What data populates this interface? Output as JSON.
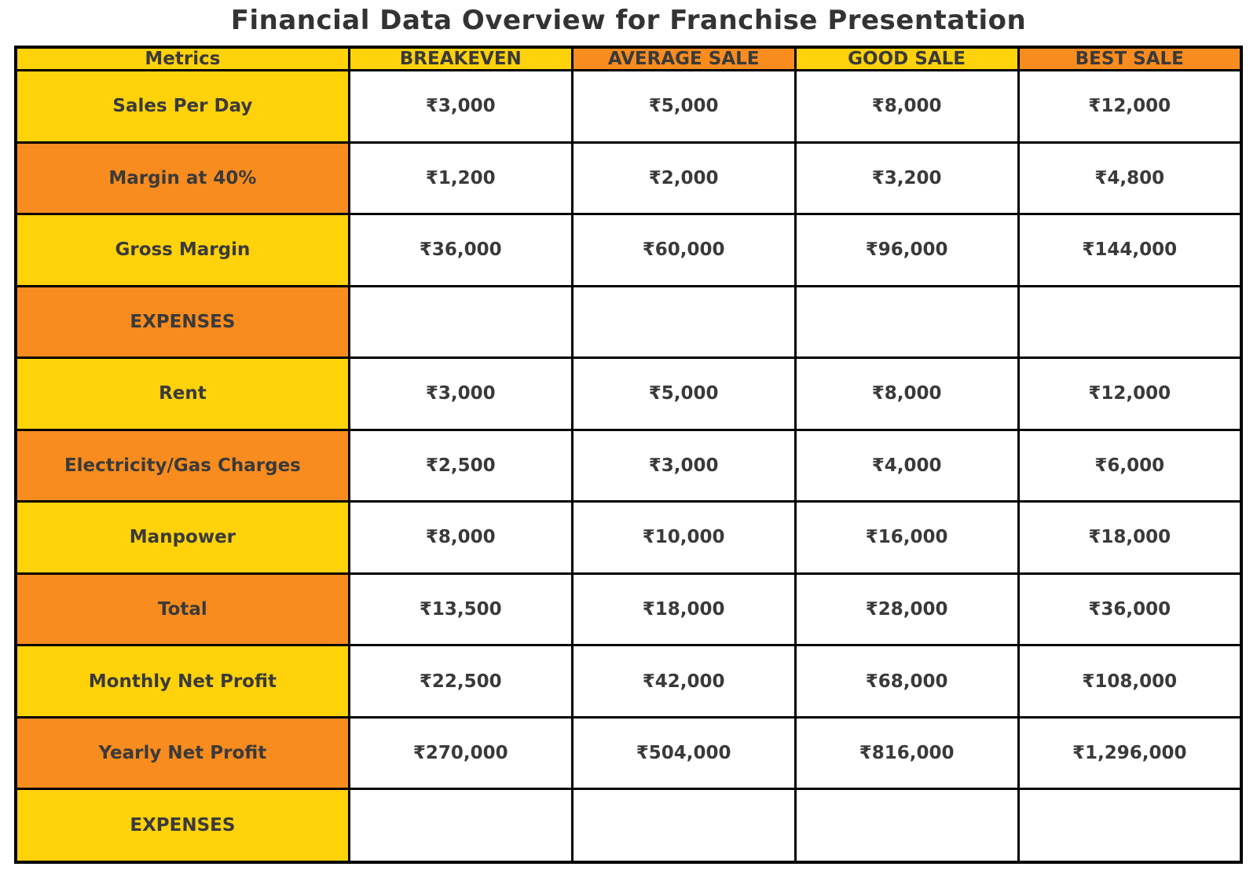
{
  "title": "Financial Data Overview for Franchise Presentation",
  "currency_symbol": "₹",
  "colors": {
    "yellow": "#FFD20A",
    "orange": "#F98C1E",
    "cell_background": "#FFFFFF",
    "border": "#000000",
    "text": "#3A3A3A"
  },
  "table": {
    "columns": [
      "Metrics",
      "BREAKEVEN",
      "AVERAGE SALE",
      "GOOD SALE",
      "BEST SALE"
    ],
    "header_colors": [
      "yellow",
      "yellow",
      "orange",
      "yellow",
      "orange"
    ],
    "rows": [
      {
        "label": "Sales Per Day",
        "label_color": "yellow",
        "values": [
          "₹3,000",
          "₹5,000",
          "₹8,000",
          "₹12,000"
        ]
      },
      {
        "label": "Margin at 40%",
        "label_color": "orange",
        "values": [
          "₹1,200",
          "₹2,000",
          "₹3,200",
          "₹4,800"
        ]
      },
      {
        "label": "Gross Margin",
        "label_color": "yellow",
        "values": [
          "₹36,000",
          "₹60,000",
          "₹96,000",
          "₹144,000"
        ]
      },
      {
        "label": "EXPENSES",
        "label_color": "orange",
        "values": [
          "",
          "",
          "",
          ""
        ]
      },
      {
        "label": "Rent",
        "label_color": "yellow",
        "values": [
          "₹3,000",
          "₹5,000",
          "₹8,000",
          "₹12,000"
        ]
      },
      {
        "label": "Electricity/Gas Charges",
        "label_color": "orange",
        "values": [
          "₹2,500",
          "₹3,000",
          "₹4,000",
          "₹6,000"
        ]
      },
      {
        "label": "Manpower",
        "label_color": "yellow",
        "values": [
          "₹8,000",
          "₹10,000",
          "₹16,000",
          "₹18,000"
        ]
      },
      {
        "label": "Total",
        "label_color": "orange",
        "values": [
          "₹13,500",
          "₹18,000",
          "₹28,000",
          "₹36,000"
        ]
      },
      {
        "label": "Monthly Net Profit",
        "label_color": "yellow",
        "values": [
          "₹22,500",
          "₹42,000",
          "₹68,000",
          "₹108,000"
        ]
      },
      {
        "label": "Yearly Net Profit",
        "label_color": "orange",
        "values": [
          "₹270,000",
          "₹504,000",
          "₹816,000",
          "₹1,296,000"
        ]
      },
      {
        "label": "EXPENSES",
        "label_color": "yellow",
        "values": [
          "",
          "",
          "",
          ""
        ]
      }
    ]
  },
  "chart_data": {
    "type": "table",
    "title": "Financial Data Overview for Franchise Presentation",
    "categories": [
      "BREAKEVEN",
      "AVERAGE SALE",
      "GOOD SALE",
      "BEST SALE"
    ],
    "series": [
      {
        "name": "Sales Per Day",
        "values": [
          3000,
          5000,
          8000,
          12000
        ]
      },
      {
        "name": "Margin at 40%",
        "values": [
          1200,
          2000,
          3200,
          4800
        ]
      },
      {
        "name": "Gross Margin",
        "values": [
          36000,
          60000,
          96000,
          144000
        ]
      },
      {
        "name": "EXPENSES",
        "values": [
          null,
          null,
          null,
          null
        ]
      },
      {
        "name": "Rent",
        "values": [
          3000,
          5000,
          8000,
          12000
        ]
      },
      {
        "name": "Electricity/Gas Charges",
        "values": [
          2500,
          3000,
          4000,
          6000
        ]
      },
      {
        "name": "Manpower",
        "values": [
          8000,
          10000,
          16000,
          18000
        ]
      },
      {
        "name": "Total",
        "values": [
          13500,
          18000,
          28000,
          36000
        ]
      },
      {
        "name": "Monthly Net Profit",
        "values": [
          22500,
          42000,
          68000,
          108000
        ]
      },
      {
        "name": "Yearly Net Profit",
        "values": [
          270000,
          504000,
          816000,
          1296000
        ]
      },
      {
        "name": "EXPENSES",
        "values": [
          null,
          null,
          null,
          null
        ]
      }
    ],
    "unit": "INR (₹)"
  }
}
